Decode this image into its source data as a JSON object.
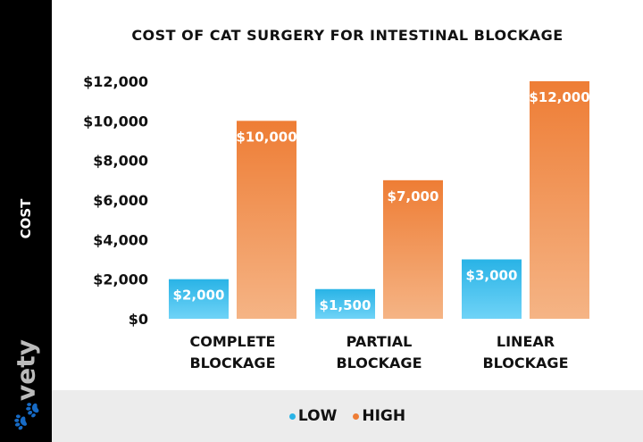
{
  "brand": "vety",
  "chart_data": {
    "type": "bar",
    "title": "COST OF CAT SURGERY FOR INTESTINAL BLOCKAGE",
    "ylabel": "COST",
    "xlabel": "",
    "categories": [
      [
        "COMPLETE",
        "BLOCKAGE"
      ],
      [
        "PARTIAL",
        "BLOCKAGE"
      ],
      [
        "LINEAR",
        "BLOCKAGE"
      ]
    ],
    "series": [
      {
        "name": "LOW",
        "values": [
          2000,
          1500,
          3000
        ],
        "labels": [
          "$2,000",
          "$1,500",
          "$3,000"
        ],
        "color": "#29b3e6"
      },
      {
        "name": "HIGH",
        "values": [
          10000,
          7000,
          12000
        ],
        "labels": [
          "$10,000",
          "$7,000",
          "$12,000"
        ],
        "color": "#ee7d35"
      }
    ],
    "ylim": [
      0,
      12000
    ],
    "yticks": [
      0,
      2000,
      4000,
      6000,
      8000,
      10000,
      12000
    ],
    "ytick_labels": [
      "$0",
      "$2,000",
      "$4,000",
      "$6,000",
      "$8,000",
      "$10,000",
      "$12,000"
    ],
    "grid": false,
    "legend": "bottom"
  }
}
